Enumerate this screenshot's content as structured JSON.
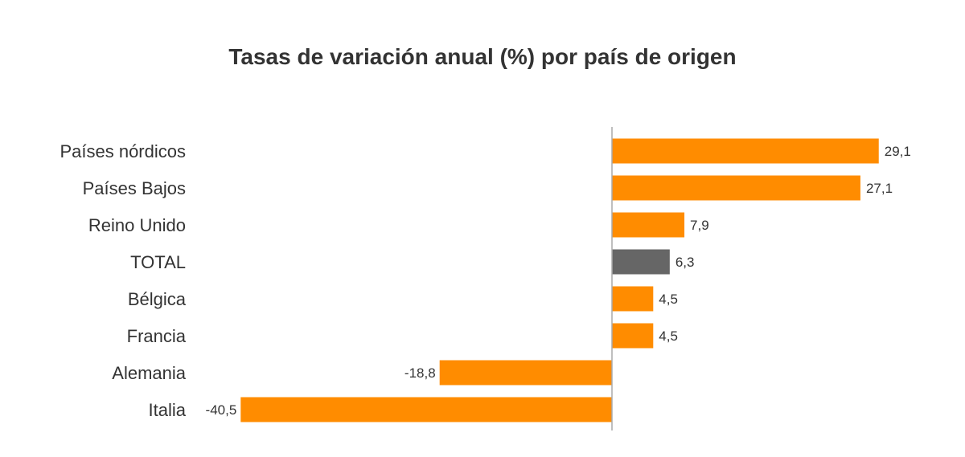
{
  "chart_data": {
    "type": "bar",
    "orientation": "horizontal",
    "title": "Tasas de variación anual (%) por país de origen",
    "xlabel": "",
    "ylabel": "",
    "grid": false,
    "categories": [
      "Países nórdicos",
      "Países Bajos",
      "Reino Unido",
      "TOTAL",
      "Bélgica",
      "Francia",
      "Alemania",
      "Italia"
    ],
    "values": [
      29.1,
      27.1,
      7.9,
      6.3,
      4.5,
      4.5,
      -18.8,
      -40.5
    ],
    "value_labels": [
      "29,1",
      "27,1",
      "7,9",
      "6,3",
      "4,5",
      "4,5",
      "-18,8",
      "-40,5"
    ],
    "highlight_category": "TOTAL",
    "colors": {
      "bar": "#FF8C00",
      "highlight": "#666666",
      "axis": "#aaaaaa",
      "text": "#333333"
    }
  }
}
